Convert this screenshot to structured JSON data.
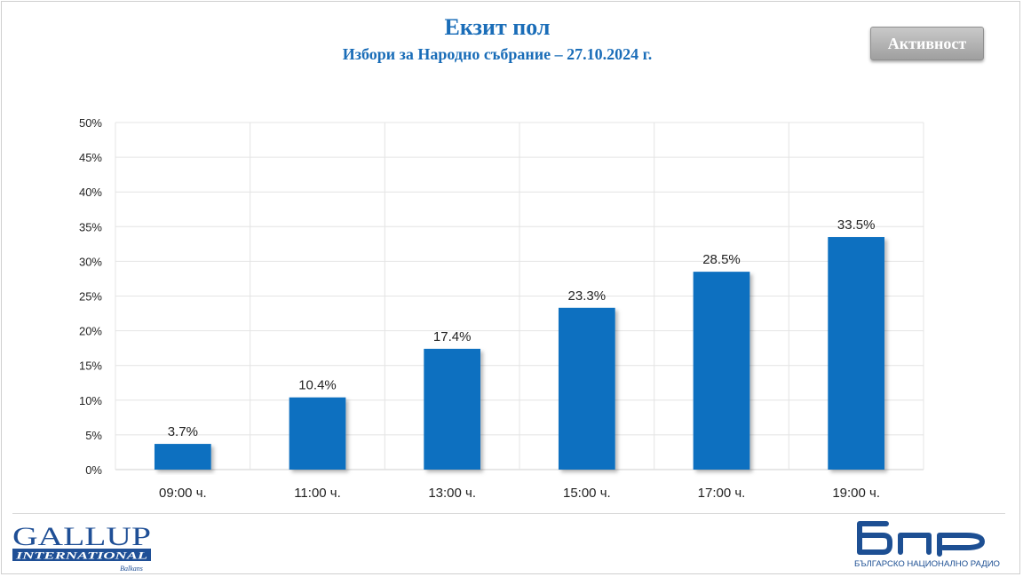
{
  "header": {
    "title": "Екзит пол",
    "subtitle": "Избори за Народно събрание – 27.10.2024 г.",
    "activity_button": "Активност"
  },
  "colors": {
    "accent": "#1a6db8",
    "bar": "#1070c0",
    "grid": "#e4e4e4"
  },
  "chart_data": {
    "type": "bar",
    "title": "",
    "xlabel": "",
    "ylabel": "",
    "categories": [
      "09:00 ч.",
      "11:00 ч.",
      "13:00 ч.",
      "15:00 ч.",
      "17:00 ч.",
      "19:00 ч."
    ],
    "values": [
      3.7,
      10.4,
      17.4,
      23.3,
      28.5,
      33.5
    ],
    "value_labels": [
      "3.7%",
      "10.4%",
      "17.4%",
      "23.3%",
      "28.5%",
      "33.5%"
    ],
    "ylim": [
      0,
      50
    ],
    "yticks": [
      "0%",
      "5%",
      "10%",
      "15%",
      "20%",
      "25%",
      "30%",
      "35%",
      "40%",
      "45%",
      "50%"
    ],
    "grid": true,
    "legend": "none"
  },
  "logos": {
    "gallup": {
      "line1": "GALLUP",
      "line2": "INTERNATIONAL",
      "line3": "Balkans"
    },
    "bnr": {
      "mark": "бнр",
      "caption": "БЪЛГАРСКО НАЦИОНАЛНО РАДИО"
    }
  }
}
